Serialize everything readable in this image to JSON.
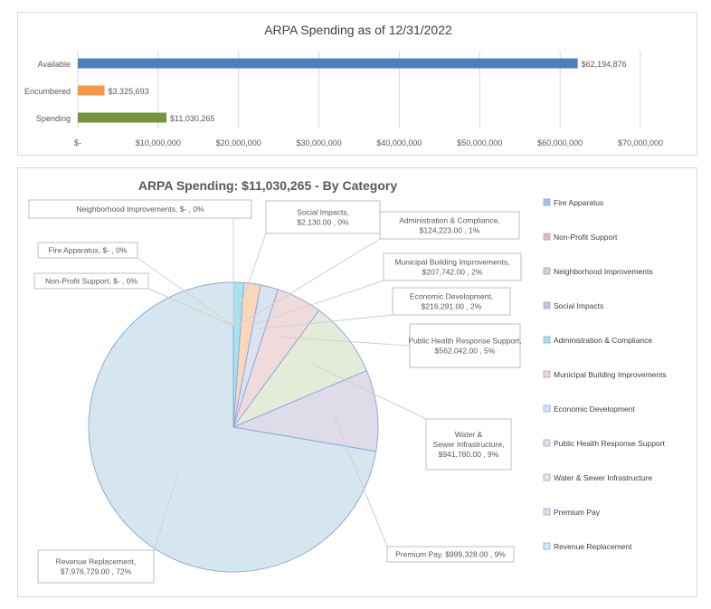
{
  "chart_data": [
    {
      "type": "bar",
      "orientation": "horizontal",
      "title": "ARPA Spending as of 12/31/2022",
      "categories": [
        "Available",
        "Encumbered",
        "Spending"
      ],
      "values": [
        62194876,
        3325693,
        11030265
      ],
      "value_labels": [
        "$62,194,876",
        "$3,325,693",
        "$11,030,265"
      ],
      "colors": [
        "#4f7ec0",
        "#f79646",
        "#77933c"
      ],
      "xlim": [
        0,
        70000000
      ],
      "x_ticks": [
        0,
        10000000,
        20000000,
        30000000,
        40000000,
        50000000,
        60000000,
        70000000
      ],
      "x_tick_labels": [
        "$-",
        "$10,000,000",
        "$20,000,000",
        "$30,000,000",
        "$40,000,000",
        "$50,000,000",
        "$60,000,000",
        "$70,000,000"
      ],
      "grid": true,
      "legend": "none"
    },
    {
      "type": "pie",
      "title": "ARPA Spending: $11,030,265  - By Category",
      "legend_position": "right",
      "slices": [
        {
          "name": "Fire Apparatus",
          "value": 0,
          "label": "Fire Apparatus, $-   , 0%",
          "color": "#9dc3e6"
        },
        {
          "name": "Non-Profit Support",
          "value": 0,
          "label": "Non-Profit Support, $-   , 0%",
          "color": "#f4b6b5"
        },
        {
          "name": "Neighborhood Improvements",
          "value": 0,
          "label": "Neighborhood Improvements, $-   , 0%",
          "color": "#c5e0a5"
        },
        {
          "name": "Social Impacts",
          "value": 2130,
          "label": "Social Impacts, $2,130.00 , 0%",
          "color": "#c9bfe0"
        },
        {
          "name": "Administration & Compliance",
          "value": 124223,
          "label": "Administration & Compliance, $124,223.00 , 1%",
          "color": "#a6e3ef"
        },
        {
          "name": "Municipal Building Improvements",
          "value": 207742,
          "label": "Municipal Building Improvements, $207,742.00 , 2%",
          "color": "#fbd6b8"
        },
        {
          "name": "Economic Development",
          "value": 216291,
          "label": "Economic Development, $216,291.00 , 2%",
          "color": "#dae3f1"
        },
        {
          "name": "Public Health Response Support",
          "value": 562042,
          "label": "Public Health Response Support, $562,042.00 , 5%",
          "color": "#efdbdb"
        },
        {
          "name": "Water & Sewer Infrastructure",
          "value": 941780,
          "label": "Water & Sewer Infrastructure, $941,780.00 , 9%",
          "color": "#e4ecd9"
        },
        {
          "name": "Premium Pay",
          "value": 999328,
          "label": "Premium Pay, $999,328.00 , 9%",
          "color": "#dfdbe9"
        },
        {
          "name": "Revenue Replacement",
          "value": 7976729,
          "label": "Revenue Replacement, $7,976,729.00 , 72%",
          "color": "#d5e6ef"
        }
      ]
    }
  ],
  "colors": {
    "grid": "#d9d9d9",
    "text": "#595959",
    "pie_edge": "#8faadc"
  }
}
